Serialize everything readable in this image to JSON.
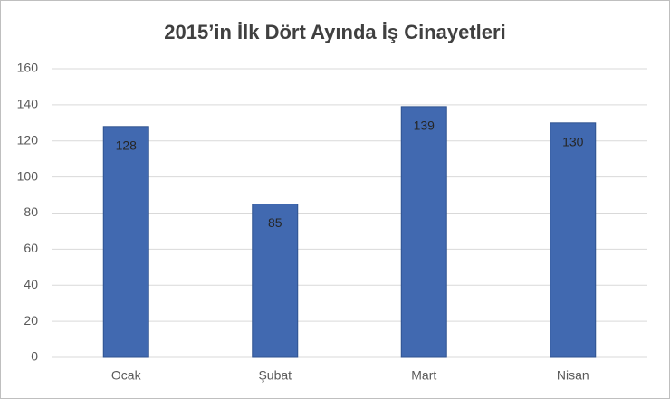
{
  "chart_data": {
    "type": "bar",
    "title": "2015’in İlk Dört Ayında İş Cinayetleri",
    "categories": [
      "Ocak",
      "Şubat",
      "Mart",
      "Nisan"
    ],
    "values": [
      128,
      85,
      139,
      130
    ],
    "color": "#4169b0",
    "ylim": [
      0,
      160
    ],
    "yticks": [
      0,
      20,
      40,
      60,
      80,
      100,
      120,
      140,
      160
    ],
    "grid": true
  }
}
